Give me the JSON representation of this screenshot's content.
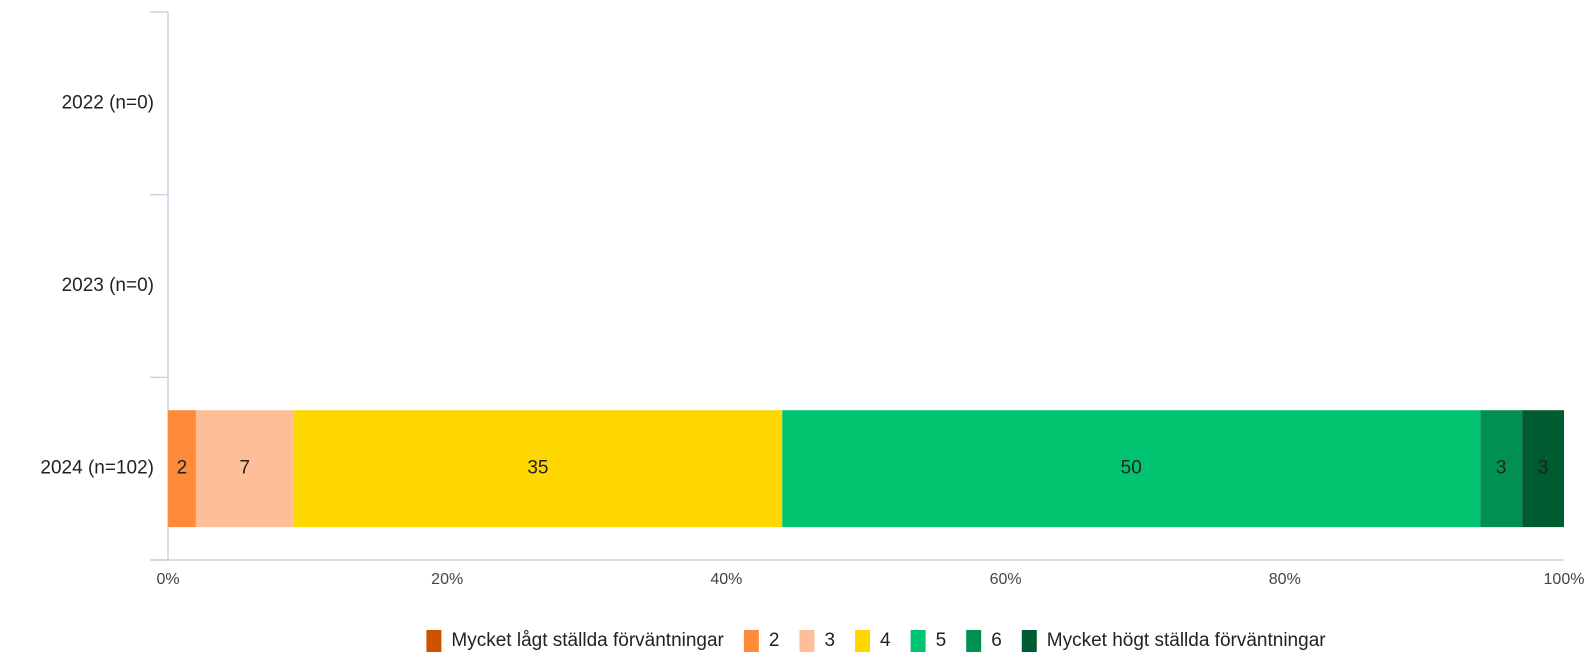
{
  "chart_data": {
    "type": "stacked_barh",
    "categories": [
      "2022 (n=0)",
      "2023 (n=0)",
      "2024 (n=102)"
    ],
    "series": [
      {
        "name": "Mycket lågt ställda förväntningar",
        "color": "#cc5200",
        "values": [
          null,
          null,
          0
        ]
      },
      {
        "name": "2",
        "color": "#fe8a3b",
        "values": [
          null,
          null,
          2
        ]
      },
      {
        "name": "3",
        "color": "#fdbf98",
        "values": [
          null,
          null,
          7
        ]
      },
      {
        "name": "4",
        "color": "#fed700",
        "values": [
          null,
          null,
          35
        ]
      },
      {
        "name": "5",
        "color": "#00c36f",
        "values": [
          null,
          null,
          50
        ]
      },
      {
        "name": "6",
        "color": "#009150",
        "values": [
          null,
          null,
          3
        ]
      },
      {
        "name": "Mycket högt ställda förväntningar",
        "color": "#005a32",
        "values": [
          null,
          null,
          3
        ]
      }
    ],
    "xlim": [
      0,
      100
    ],
    "xticks": [
      {
        "value": 0,
        "label": "0%"
      },
      {
        "value": 20,
        "label": "20%"
      },
      {
        "value": 40,
        "label": "40%"
      },
      {
        "value": 60,
        "label": "60%"
      },
      {
        "value": 80,
        "label": "80%"
      },
      {
        "value": 100,
        "label": "100%"
      }
    ],
    "legend": "bottom"
  }
}
